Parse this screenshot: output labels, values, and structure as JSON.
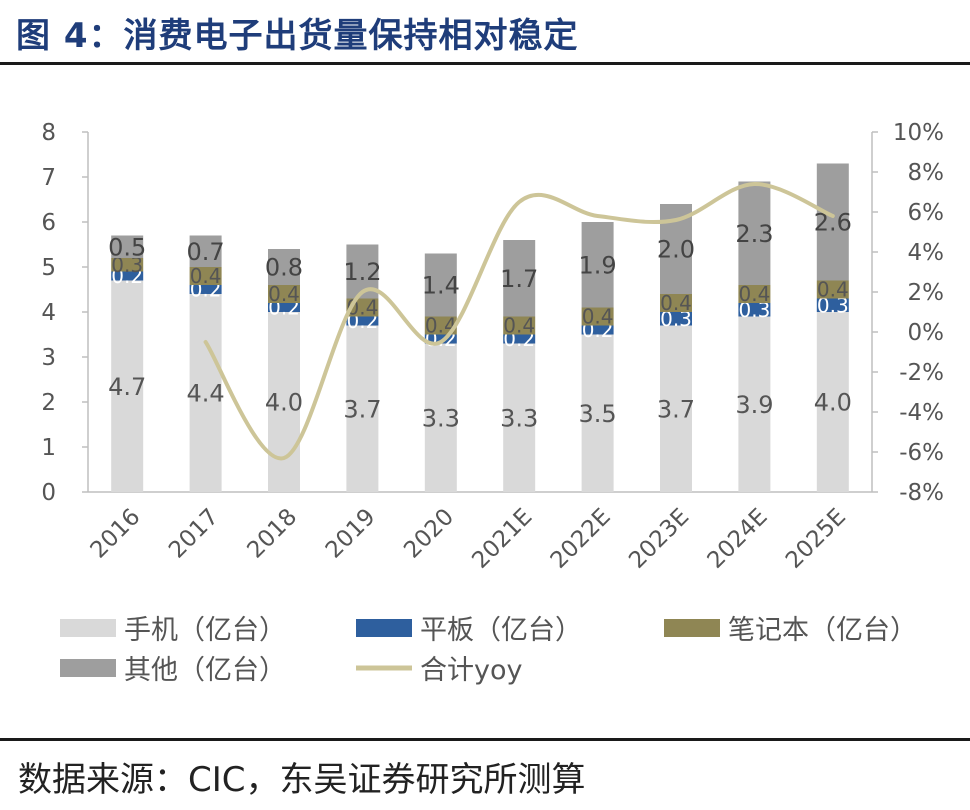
{
  "title": "图 4：消费电子出货量保持相对稳定",
  "source": "数据来源：CIC，东吴证券研究所测算",
  "chart_data": {
    "type": "bar",
    "stacked": true,
    "categories": [
      "2016",
      "2017",
      "2018",
      "2019",
      "2020",
      "2021E",
      "2022E",
      "2023E",
      "2024E",
      "2025E"
    ],
    "series": [
      {
        "name": "手机（亿台）",
        "color": "#d9d9d9",
        "values": [
          4.7,
          4.4,
          4.0,
          3.7,
          3.3,
          3.3,
          3.5,
          3.7,
          3.9,
          4.0
        ]
      },
      {
        "name": "平板（亿台）",
        "color": "#2e5f9e",
        "values": [
          0.2,
          0.2,
          0.2,
          0.2,
          0.2,
          0.2,
          0.2,
          0.3,
          0.3,
          0.3
        ]
      },
      {
        "name": "笔记本（亿台）",
        "color": "#8f8654",
        "values": [
          0.3,
          0.4,
          0.4,
          0.4,
          0.4,
          0.4,
          0.4,
          0.4,
          0.4,
          0.4
        ]
      },
      {
        "name": "其他（亿台）",
        "color": "#9e9e9e",
        "values": [
          0.5,
          0.7,
          0.8,
          1.2,
          1.4,
          1.7,
          1.9,
          2.0,
          2.3,
          2.6
        ]
      }
    ],
    "line_series": {
      "name": "合计yoy",
      "color": "#cdc598",
      "values": [
        null,
        -0.5,
        -6.3,
        2.0,
        -0.5,
        6.5,
        5.8,
        5.6,
        7.4,
        5.8
      ]
    },
    "yaxis_left": {
      "min": 0,
      "max": 8,
      "ticks": [
        "0",
        "1",
        "2",
        "3",
        "4",
        "5",
        "6",
        "7",
        "8"
      ]
    },
    "yaxis_right": {
      "min": -8,
      "max": 10,
      "ticks": [
        "-8%",
        "-6%",
        "-4%",
        "-2%",
        "0%",
        "2%",
        "4%",
        "6%",
        "8%",
        "10%"
      ]
    },
    "legend_position": "bottom"
  }
}
